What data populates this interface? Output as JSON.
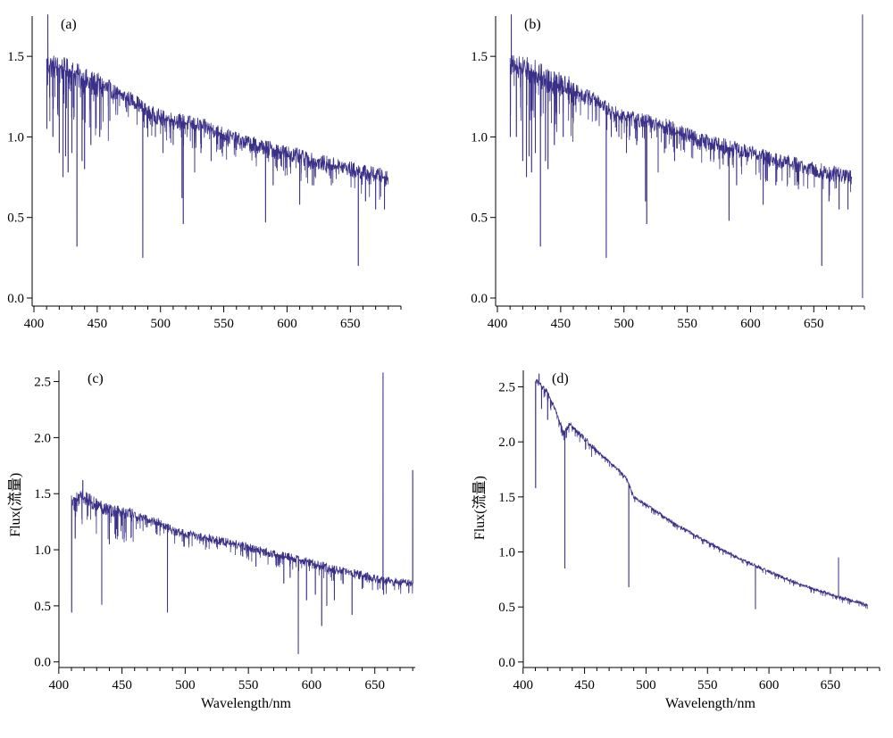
{
  "figure": {
    "line_color": "#3b3088",
    "axis_color": "#000000"
  },
  "chart_data": [
    {
      "type": "line",
      "panel_label": "(a)",
      "xlabel": "",
      "ylabel": "",
      "xlim": [
        400,
        690
      ],
      "ylim": [
        -0.05,
        1.75
      ],
      "xticks": [
        400,
        450,
        500,
        550,
        600,
        650
      ],
      "yticks": [
        0.0,
        0.5,
        1.0,
        1.5
      ],
      "ytick_labels": [
        "0.0",
        "0.5",
        "1.0",
        "1.5"
      ],
      "series": [
        {
          "continuum": [
            [
              410,
              1.45
            ],
            [
              430,
              1.4
            ],
            [
              440,
              1.35
            ],
            [
              460,
              1.29
            ],
            [
              480,
              1.22
            ],
            [
              490,
              1.15
            ],
            [
              500,
              1.12
            ],
            [
              520,
              1.09
            ],
            [
              540,
              1.05
            ],
            [
              560,
              0.98
            ],
            [
              580,
              0.94
            ],
            [
              600,
              0.9
            ],
            [
              620,
              0.85
            ],
            [
              640,
              0.82
            ],
            [
              660,
              0.78
            ],
            [
              680,
              0.75
            ]
          ],
          "absorption_lines": [
            [
              410.2,
              1.05
            ],
            [
              415,
              1.0
            ],
            [
              420,
              0.9
            ],
            [
              423,
              0.75
            ],
            [
              425,
              0.88
            ],
            [
              427,
              0.78
            ],
            [
              430,
              0.9
            ],
            [
              434,
              0.32
            ],
            [
              438,
              0.85
            ],
            [
              440,
              0.8
            ],
            [
              445,
              0.95
            ],
            [
              452,
              1.0
            ],
            [
              460,
              1.1
            ],
            [
              486,
              0.25
            ],
            [
              490,
              1.0
            ],
            [
              496,
              1.0
            ],
            [
              502,
              0.9
            ],
            [
              510,
              0.95
            ],
            [
              517,
              0.62
            ],
            [
              518,
              0.46
            ],
            [
              527,
              0.78
            ],
            [
              532,
              0.9
            ],
            [
              540,
              0.85
            ],
            [
              547,
              0.92
            ],
            [
              560,
              0.92
            ],
            [
              583,
              0.47
            ],
            [
              589,
              0.7
            ],
            [
              610,
              0.58
            ],
            [
              620,
              0.7
            ],
            [
              635,
              0.7
            ],
            [
              656.3,
              0.2
            ],
            [
              662,
              0.6
            ],
            [
              670,
              0.55
            ],
            [
              677,
              0.55
            ]
          ],
          "emission_lines": [
            [
              411,
              1.76
            ]
          ],
          "noise": 0.05
        }
      ]
    },
    {
      "type": "line",
      "panel_label": "(b)",
      "xlabel": "",
      "ylabel": "",
      "xlim": [
        400,
        690
      ],
      "ylim": [
        -0.05,
        1.75
      ],
      "xticks": [
        400,
        450,
        500,
        550,
        600,
        650
      ],
      "yticks": [
        0.0,
        0.5,
        1.0,
        1.5
      ],
      "ytick_labels": [
        "0.0",
        "0.5",
        "1.0",
        "1.5"
      ],
      "series": [
        {
          "continuum": [
            [
              410,
              1.45
            ],
            [
              430,
              1.4
            ],
            [
              440,
              1.35
            ],
            [
              460,
              1.29
            ],
            [
              480,
              1.22
            ],
            [
              490,
              1.15
            ],
            [
              500,
              1.12
            ],
            [
              520,
              1.09
            ],
            [
              540,
              1.05
            ],
            [
              560,
              0.98
            ],
            [
              580,
              0.94
            ],
            [
              600,
              0.9
            ],
            [
              620,
              0.85
            ],
            [
              640,
              0.82
            ],
            [
              660,
              0.78
            ],
            [
              680,
              0.75
            ]
          ],
          "absorption_lines": [
            [
              410.2,
              1.0
            ],
            [
              415,
              1.0
            ],
            [
              420,
              0.85
            ],
            [
              423,
              0.75
            ],
            [
              425,
              0.88
            ],
            [
              427,
              0.78
            ],
            [
              430,
              0.9
            ],
            [
              434,
              0.32
            ],
            [
              438,
              0.85
            ],
            [
              440,
              0.8
            ],
            [
              445,
              0.95
            ],
            [
              452,
              1.0
            ],
            [
              460,
              1.1
            ],
            [
              486,
              0.25
            ],
            [
              490,
              1.0
            ],
            [
              496,
              1.0
            ],
            [
              502,
              0.9
            ],
            [
              510,
              0.95
            ],
            [
              517,
              0.6
            ],
            [
              518,
              0.46
            ],
            [
              527,
              0.78
            ],
            [
              532,
              0.9
            ],
            [
              540,
              0.85
            ],
            [
              547,
              0.92
            ],
            [
              560,
              0.92
            ],
            [
              583,
              0.48
            ],
            [
              589,
              0.7
            ],
            [
              610,
              0.58
            ],
            [
              620,
              0.7
            ],
            [
              635,
              0.7
            ],
            [
              656.3,
              0.2
            ],
            [
              662,
              0.6
            ],
            [
              670,
              0.55
            ],
            [
              677,
              0.55
            ]
          ],
          "emission_lines": [
            [
              411,
              1.76
            ]
          ],
          "noise": 0.05,
          "end_spike": {
            "x": 688.5,
            "y": 0.0,
            "y_top": 1.76
          }
        }
      ]
    },
    {
      "type": "line",
      "panel_label": "(c)",
      "xlabel": "Wavelength/nm",
      "ylabel": "Flux(流量)",
      "xlim": [
        398,
        682
      ],
      "ylim": [
        -0.05,
        2.6
      ],
      "xticks": [
        400,
        450,
        500,
        550,
        600,
        650
      ],
      "yticks": [
        0.0,
        0.5,
        1.0,
        1.5,
        2.0,
        2.5
      ],
      "ytick_labels": [
        "0.0",
        "0.5",
        "1.0",
        "1.5",
        "2.0",
        "2.5"
      ],
      "series": [
        {
          "continuum": [
            [
              410,
              1.45
            ],
            [
              420,
              1.47
            ],
            [
              430,
              1.4
            ],
            [
              440,
              1.36
            ],
            [
              460,
              1.3
            ],
            [
              480,
              1.24
            ],
            [
              490,
              1.17
            ],
            [
              500,
              1.14
            ],
            [
              520,
              1.1
            ],
            [
              540,
              1.05
            ],
            [
              560,
              0.99
            ],
            [
              580,
              0.94
            ],
            [
              600,
              0.88
            ],
            [
              620,
              0.82
            ],
            [
              640,
              0.77
            ],
            [
              660,
              0.72
            ],
            [
              680,
              0.7
            ]
          ],
          "absorption_lines": [
            [
              410.2,
              0.44
            ],
            [
              413,
              1.1
            ],
            [
              434,
              0.51
            ],
            [
              440,
              1.05
            ],
            [
              445,
              1.1
            ],
            [
              486,
              0.44
            ],
            [
              503,
              1.05
            ],
            [
              556,
              0.85
            ],
            [
              578,
              0.7
            ],
            [
              583,
              0.75
            ],
            [
              589.5,
              0.07
            ],
            [
              596,
              0.55
            ],
            [
              603,
              0.6
            ],
            [
              608,
              0.32
            ],
            [
              612,
              0.5
            ],
            [
              618,
              0.55
            ],
            [
              632,
              0.42
            ],
            [
              640,
              0.65
            ],
            [
              657,
              0.6
            ]
          ],
          "emission_lines": [
            [
              419,
              1.62
            ],
            [
              656.5,
              2.58
            ],
            [
              680,
              1.71
            ]
          ],
          "noise": 0.04
        }
      ]
    },
    {
      "type": "line",
      "panel_label": "(d)",
      "xlabel": "Wavelength/nm",
      "ylabel": "Flux(流量)",
      "xlim": [
        398,
        690
      ],
      "ylim": [
        -0.05,
        2.65
      ],
      "xticks": [
        400,
        450,
        500,
        550,
        600,
        650
      ],
      "yticks": [
        0.0,
        0.5,
        1.0,
        1.5,
        2.0,
        2.5
      ],
      "ytick_labels": [
        "0.0",
        "0.5",
        "1.0",
        "1.5",
        "2.0",
        "2.5"
      ],
      "series": [
        {
          "continuum": [
            [
              411,
              2.55
            ],
            [
              420,
              2.45
            ],
            [
              425,
              2.32
            ],
            [
              430,
              2.18
            ],
            [
              433,
              2.08
            ],
            [
              438,
              2.16
            ],
            [
              445,
              2.08
            ],
            [
              460,
              1.92
            ],
            [
              470,
              1.82
            ],
            [
              480,
              1.72
            ],
            [
              485,
              1.65
            ],
            [
              490,
              1.5
            ],
            [
              500,
              1.43
            ],
            [
              520,
              1.28
            ],
            [
              540,
              1.15
            ],
            [
              560,
              1.03
            ],
            [
              580,
              0.92
            ],
            [
              600,
              0.82
            ],
            [
              620,
              0.73
            ],
            [
              640,
              0.65
            ],
            [
              660,
              0.58
            ],
            [
              680,
              0.52
            ]
          ],
          "absorption_lines": [
            [
              410.2,
              1.58
            ],
            [
              415,
              2.3
            ],
            [
              420,
              2.2
            ],
            [
              434,
              0.85
            ],
            [
              486,
              0.68
            ],
            [
              589,
              0.48
            ],
            [
              655.5,
              0.58
            ]
          ],
          "emission_lines": [
            [
              413,
              2.62
            ],
            [
              656.6,
              0.95
            ]
          ],
          "noise": 0.015
        }
      ]
    }
  ]
}
